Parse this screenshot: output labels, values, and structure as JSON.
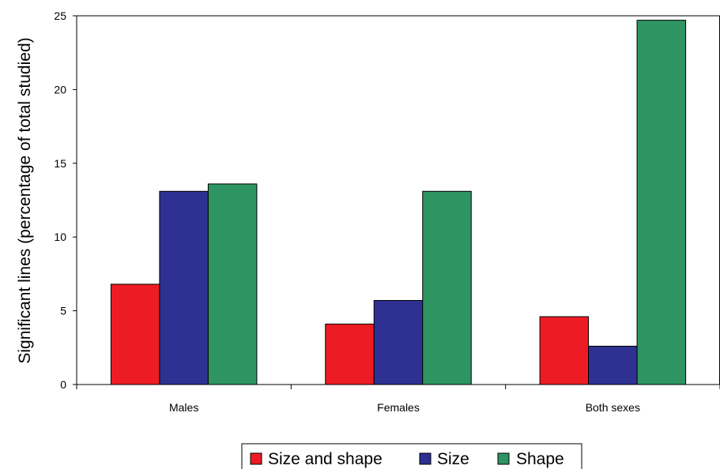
{
  "chart_data": {
    "type": "bar",
    "title": "",
    "xlabel": "",
    "ylabel": "Significant lines (percentage of total studied)",
    "categories": [
      "Males",
      "Females",
      "Both sexes"
    ],
    "series": [
      {
        "name": "Size and shape",
        "color": "#ed1c24",
        "values": [
          6.8,
          4.1,
          4.6
        ]
      },
      {
        "name": "Size",
        "color": "#2e3192",
        "values": [
          13.1,
          5.7,
          2.6
        ]
      },
      {
        "name": "Shape",
        "color": "#2e9462",
        "values": [
          13.6,
          13.1,
          24.7
        ]
      }
    ],
    "ylim": [
      0,
      25
    ],
    "yticks": [
      0,
      5,
      10,
      15,
      20,
      25
    ],
    "grid": false,
    "legend_position": "bottom-center"
  }
}
